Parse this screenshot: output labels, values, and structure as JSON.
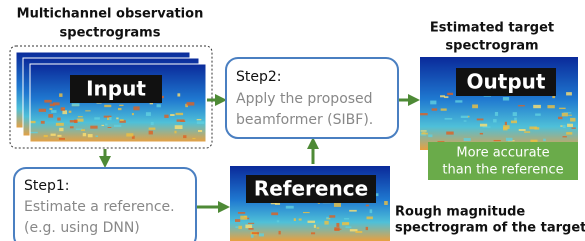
{
  "input": {
    "caption": [
      "Multichannel observation",
      "spectrograms"
    ],
    "label": "Input"
  },
  "step1": {
    "title": "Step1:",
    "lines": [
      "Estimate a reference.",
      "(e.g. using DNN)"
    ]
  },
  "step2": {
    "title": "Step2:",
    "lines": [
      "Apply the proposed",
      "beamformer (SIBF)."
    ]
  },
  "reference": {
    "label": "Reference",
    "caption": [
      "Rough magnitude",
      "spectrogram of the target"
    ]
  },
  "output": {
    "caption": [
      "Estimated target",
      "spectrogram"
    ],
    "label": "Output",
    "note": [
      "More accurate",
      "than the reference"
    ]
  }
}
